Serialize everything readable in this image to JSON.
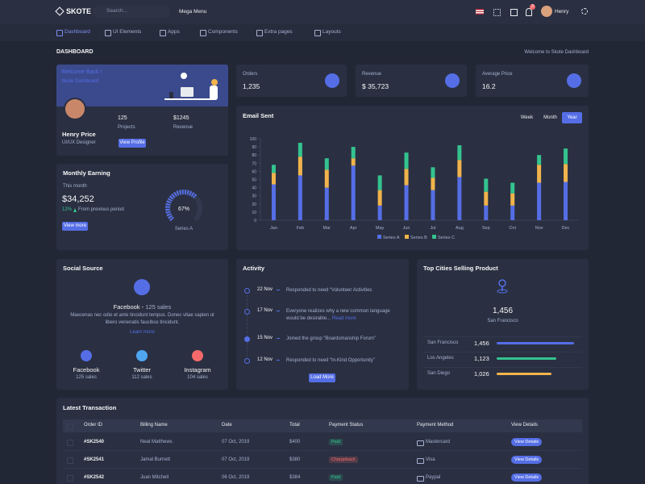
{
  "header": {
    "logo": "SKOTE",
    "search_placeholder": "Search...",
    "mega_menu": "Mega Menu",
    "notification_count": 3,
    "user": "Henry"
  },
  "nav": [
    "Dashboard",
    "UI Elements",
    "Apps",
    "Components",
    "Extra pages",
    "Layouts"
  ],
  "page": {
    "title": "DASHBOARD",
    "breadcrumb": "Welcome to Skote Dashboard"
  },
  "welcome": {
    "title": "Welcome Back !",
    "subtitle": "Skote Dashboard",
    "name": "Henry Price",
    "role": "UI/UX Designer",
    "projects": "125",
    "projects_label": "Projects",
    "revenue": "$1245",
    "revenue_label": "Revenue",
    "button": "View Profile"
  },
  "monthly_earning": {
    "title": "Monthly Earning",
    "period": "This month",
    "amount": "$34,252",
    "change": "12%",
    "change_text": "From previous period",
    "button": "View more",
    "gauge": {
      "value": 67,
      "value_label": "67%",
      "label": "Series A",
      "max": 100,
      "color": "#556ee6"
    }
  },
  "stats": [
    {
      "label": "Orders",
      "value": "1,235"
    },
    {
      "label": "Revenue",
      "value": "$ 35,723"
    },
    {
      "label": "Average Price",
      "value": "16.2"
    }
  ],
  "email_chart": {
    "type": "bar",
    "stacked": true,
    "title": "Email Sent",
    "tabs": [
      "Week",
      "Month",
      "Year"
    ],
    "active_tab": 2,
    "categories": [
      "Jan",
      "Feb",
      "Mar",
      "Apr",
      "May",
      "Jun",
      "Jul",
      "Aug",
      "Sep",
      "Oct",
      "Nov",
      "Dec"
    ],
    "series": [
      {
        "name": "Series A",
        "color": "#556ee6",
        "values": [
          44,
          55,
          40,
          67,
          18,
          43,
          37,
          53,
          18,
          18,
          46,
          47
        ]
      },
      {
        "name": "Series B",
        "color": "#f1b44c",
        "values": [
          14,
          23,
          22,
          9,
          19,
          20,
          15,
          21,
          17,
          15,
          22,
          22
        ]
      },
      {
        "name": "Series C",
        "color": "#34c38f",
        "values": [
          10,
          17,
          14,
          14,
          18,
          20,
          13,
          18,
          16,
          13,
          12,
          19
        ]
      }
    ],
    "ylim": [
      0,
      100
    ],
    "yticks": [
      0,
      10,
      20,
      30,
      40,
      50,
      60,
      70,
      80,
      90,
      100
    ]
  },
  "social": {
    "title": "Social Source",
    "headline": "Facebook -",
    "headline_sales": "125 sales",
    "description": "Maecenas nec odio et ante tincidunt tempus. Donec vitae sapien ut libero venenatis faucibus tincidunt.",
    "link": "Learn more",
    "sources": [
      {
        "name": "Facebook",
        "sales": "125 sales",
        "color": "#556ee6"
      },
      {
        "name": "Twitter",
        "sales": "112 sales",
        "color": "#50a5f1"
      },
      {
        "name": "Instagram",
        "sales": "104 sales",
        "color": "#f46a6a"
      }
    ]
  },
  "activity": {
    "title": "Activity",
    "button": "Load More",
    "items": [
      {
        "date": "22 Nov",
        "text": "Responded to need “Volunteer Activities"
      },
      {
        "date": "17 Nov",
        "text": "Everyone realizes why a new common language would be desirable...",
        "link": "Read more"
      },
      {
        "date": "15 Nov",
        "text": "Joined the group “Boardsmanship Forum”"
      },
      {
        "date": "12 Nov",
        "text": "Responded to need “In-Kind Opportunity”"
      }
    ]
  },
  "top_cities": {
    "title": "Top Cities Selling Product",
    "headline": "1,456",
    "headline_city": "San Francisco",
    "rows": [
      {
        "city": "San Francisco",
        "value": 1456,
        "label": "1,456",
        "color": "#556ee6"
      },
      {
        "city": "Los Angeles",
        "value": 1123,
        "label": "1,123",
        "color": "#34c38f"
      },
      {
        "city": "San Diego",
        "value": 1026,
        "label": "1,026",
        "color": "#f1b44c"
      }
    ]
  },
  "transactions": {
    "title": "Latest Transaction",
    "columns": [
      "Order ID",
      "Billing Name",
      "Date",
      "Total",
      "Payment Status",
      "Payment Method",
      "View Details"
    ],
    "rows": [
      {
        "cells": [
          "#SK2540",
          "Neal Matthews",
          "07 Oct, 2019",
          "$400",
          "Paid",
          "Mastercard",
          "View Details"
        ],
        "status_color": "#34c38f"
      },
      {
        "cells": [
          "#SK2541",
          "Jamal Burnett",
          "07 Oct, 2019",
          "$380",
          "Chargeback",
          "Visa",
          "View Details"
        ],
        "status_color": "#f46a6a"
      },
      {
        "cells": [
          "#SK2542",
          "Juan Mitchell",
          "06 Oct, 2019",
          "$384",
          "Paid",
          "Paypal",
          "View Details"
        ],
        "status_color": "#34c38f"
      }
    ]
  }
}
